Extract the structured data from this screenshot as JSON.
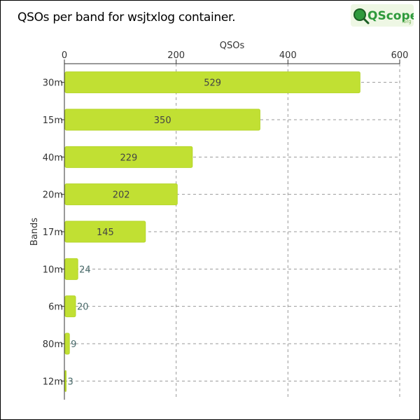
{
  "title": "QSOs per band for wsjtxlog container.",
  "logo": {
    "text": "QScope",
    "suffix": ".org"
  },
  "colors": {
    "bar_fill": "#c1e033",
    "bar_stroke": "#b5d62a",
    "grid": "#999999",
    "axis": "#333333",
    "logo_green": "#2e9a3c",
    "logo_bg": "#eef7e4"
  },
  "chart_data": {
    "type": "bar",
    "orientation": "horizontal",
    "xlabel": "QSOs",
    "ylabel": "Bands",
    "xlim": [
      0,
      600
    ],
    "xticks": [
      0,
      200,
      400,
      600
    ],
    "x_axis_position": "top",
    "grid": true,
    "categories": [
      "30m",
      "15m",
      "40m",
      "20m",
      "17m",
      "10m",
      "6m",
      "80m",
      "12m"
    ],
    "values": [
      529,
      350,
      229,
      202,
      145,
      24,
      20,
      9,
      3
    ]
  }
}
